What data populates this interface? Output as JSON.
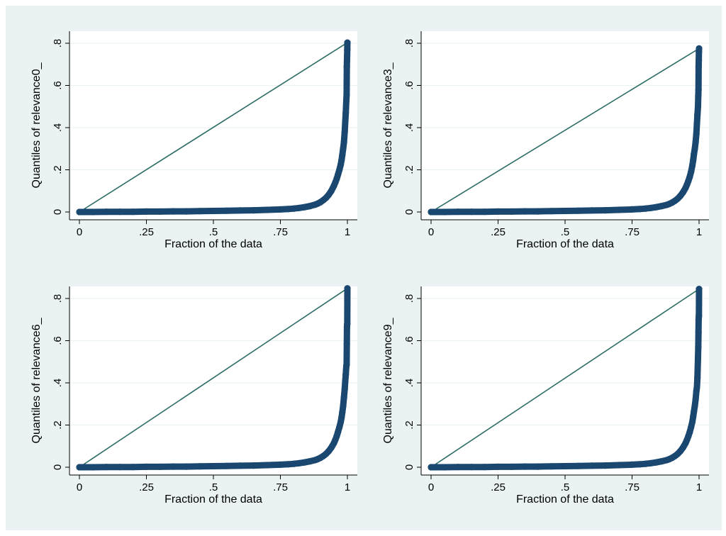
{
  "colors": {
    "background": "#eaf2f3",
    "plot_region": "#ffffff",
    "points": "#1a476f",
    "reference_line": "#2d6d66",
    "grid": "#eaf2f3"
  },
  "chart_data": [
    {
      "type": "scatter",
      "subtype": "quantile-plot",
      "ylabel": "Quantiles of relevance0_",
      "xlabel": "Fraction of the data",
      "xlim": [
        0,
        1
      ],
      "ylim": [
        0,
        0.8
      ],
      "xticks": [
        "0",
        ".25",
        ".5",
        ".75",
        "1"
      ],
      "yticks": [
        "0",
        ".2",
        ".4",
        ".6",
        ".8"
      ],
      "grid": true,
      "reference_line": {
        "from": [
          0,
          0
        ],
        "to": [
          1,
          0.803
        ]
      },
      "x": [
        0,
        0.05,
        0.1,
        0.15,
        0.2,
        0.25,
        0.3,
        0.35,
        0.4,
        0.45,
        0.5,
        0.55,
        0.6,
        0.65,
        0.7,
        0.75,
        0.78,
        0.8,
        0.82,
        0.84,
        0.86,
        0.88,
        0.89,
        0.9,
        0.91,
        0.92,
        0.93,
        0.94,
        0.95,
        0.955,
        0.96,
        0.965,
        0.97,
        0.975,
        0.978,
        0.981,
        0.984,
        0.987,
        0.99,
        0.992,
        0.994,
        0.996,
        0.997,
        0.998,
        0.9985,
        0.999,
        0.9995,
        1.0
      ],
      "y": [
        0.0,
        0.0,
        0.001,
        0.001,
        0.001,
        0.002,
        0.002,
        0.003,
        0.003,
        0.004,
        0.005,
        0.006,
        0.007,
        0.008,
        0.01,
        0.012,
        0.014,
        0.016,
        0.019,
        0.023,
        0.028,
        0.035,
        0.04,
        0.047,
        0.056,
        0.067,
        0.081,
        0.1,
        0.125,
        0.14,
        0.157,
        0.178,
        0.2,
        0.225,
        0.245,
        0.27,
        0.3,
        0.33,
        0.38,
        0.43,
        0.47,
        0.53,
        0.555,
        0.69,
        0.715,
        0.74,
        0.77,
        0.803
      ]
    },
    {
      "type": "scatter",
      "subtype": "quantile-plot",
      "ylabel": "Quantiles of relevance3_",
      "xlabel": "Fraction of the data",
      "xlim": [
        0,
        1
      ],
      "ylim": [
        0,
        0.8
      ],
      "xticks": [
        "0",
        ".25",
        ".5",
        ".75",
        "1"
      ],
      "yticks": [
        "0",
        ".2",
        ".4",
        ".6",
        ".8"
      ],
      "grid": true,
      "reference_line": {
        "from": [
          0,
          0
        ],
        "to": [
          1,
          0.775
        ]
      },
      "x": [
        0,
        0.05,
        0.1,
        0.15,
        0.2,
        0.25,
        0.3,
        0.35,
        0.4,
        0.45,
        0.5,
        0.55,
        0.6,
        0.65,
        0.7,
        0.75,
        0.78,
        0.8,
        0.82,
        0.84,
        0.86,
        0.88,
        0.89,
        0.9,
        0.91,
        0.92,
        0.93,
        0.94,
        0.95,
        0.955,
        0.96,
        0.965,
        0.97,
        0.975,
        0.978,
        0.981,
        0.984,
        0.987,
        0.99,
        0.992,
        0.994,
        0.996,
        0.997,
        0.998,
        0.9985,
        0.999,
        0.9995,
        1.0
      ],
      "y": [
        0.0,
        0.0,
        0.001,
        0.001,
        0.001,
        0.002,
        0.002,
        0.003,
        0.003,
        0.004,
        0.005,
        0.006,
        0.007,
        0.008,
        0.01,
        0.012,
        0.014,
        0.016,
        0.019,
        0.023,
        0.028,
        0.034,
        0.039,
        0.045,
        0.053,
        0.063,
        0.076,
        0.093,
        0.115,
        0.13,
        0.147,
        0.166,
        0.19,
        0.22,
        0.245,
        0.275,
        0.3,
        0.33,
        0.37,
        0.42,
        0.46,
        0.5,
        0.55,
        0.58,
        0.69,
        0.72,
        0.76,
        0.775
      ]
    },
    {
      "type": "scatter",
      "subtype": "quantile-plot",
      "ylabel": "Quantiles of relevance6_",
      "xlabel": "Fraction of the data",
      "xlim": [
        0,
        1
      ],
      "ylim": [
        0,
        0.8
      ],
      "xticks": [
        "0",
        ".25",
        ".5",
        ".75",
        "1"
      ],
      "yticks": [
        "0",
        ".2",
        ".4",
        ".6",
        ".8"
      ],
      "grid": true,
      "reference_line": {
        "from": [
          0,
          0
        ],
        "to": [
          1,
          0.848
        ]
      },
      "x": [
        0,
        0.05,
        0.1,
        0.15,
        0.2,
        0.25,
        0.3,
        0.35,
        0.4,
        0.45,
        0.5,
        0.55,
        0.6,
        0.65,
        0.7,
        0.75,
        0.78,
        0.8,
        0.82,
        0.84,
        0.86,
        0.88,
        0.89,
        0.9,
        0.91,
        0.92,
        0.93,
        0.94,
        0.95,
        0.955,
        0.96,
        0.965,
        0.97,
        0.975,
        0.978,
        0.981,
        0.984,
        0.987,
        0.99,
        0.992,
        0.994,
        0.996,
        0.997,
        0.998,
        0.9985,
        0.999,
        0.9995,
        1.0
      ],
      "y": [
        0.0,
        0.0,
        0.001,
        0.001,
        0.001,
        0.002,
        0.002,
        0.003,
        0.003,
        0.004,
        0.005,
        0.006,
        0.007,
        0.008,
        0.01,
        0.012,
        0.014,
        0.016,
        0.019,
        0.023,
        0.028,
        0.034,
        0.039,
        0.045,
        0.053,
        0.063,
        0.076,
        0.093,
        0.115,
        0.13,
        0.147,
        0.168,
        0.19,
        0.215,
        0.235,
        0.26,
        0.29,
        0.33,
        0.37,
        0.41,
        0.44,
        0.48,
        0.485,
        0.585,
        0.665,
        0.675,
        0.68,
        0.848
      ]
    },
    {
      "type": "scatter",
      "subtype": "quantile-plot",
      "ylabel": "Quantiles of relevance9_",
      "xlabel": "Fraction of the data",
      "xlim": [
        0,
        1
      ],
      "ylim": [
        0,
        0.8
      ],
      "xticks": [
        "0",
        ".25",
        ".5",
        ".75",
        "1"
      ],
      "yticks": [
        "0",
        ".2",
        ".4",
        ".6",
        ".8"
      ],
      "grid": true,
      "reference_line": {
        "from": [
          0,
          0
        ],
        "to": [
          1,
          0.845
        ]
      },
      "x": [
        0,
        0.05,
        0.1,
        0.15,
        0.2,
        0.25,
        0.3,
        0.35,
        0.4,
        0.45,
        0.5,
        0.55,
        0.6,
        0.65,
        0.7,
        0.75,
        0.78,
        0.8,
        0.82,
        0.84,
        0.86,
        0.88,
        0.89,
        0.9,
        0.91,
        0.92,
        0.93,
        0.94,
        0.95,
        0.955,
        0.96,
        0.965,
        0.97,
        0.975,
        0.978,
        0.981,
        0.984,
        0.987,
        0.99,
        0.992,
        0.994,
        0.996,
        0.997,
        0.998,
        0.9985,
        0.999,
        0.9995,
        1.0
      ],
      "y": [
        0.0,
        0.0,
        0.001,
        0.001,
        0.001,
        0.002,
        0.002,
        0.003,
        0.003,
        0.004,
        0.005,
        0.006,
        0.007,
        0.008,
        0.01,
        0.012,
        0.014,
        0.016,
        0.019,
        0.023,
        0.028,
        0.034,
        0.039,
        0.045,
        0.053,
        0.063,
        0.076,
        0.093,
        0.115,
        0.13,
        0.147,
        0.166,
        0.19,
        0.215,
        0.24,
        0.265,
        0.29,
        0.32,
        0.36,
        0.38,
        0.425,
        0.52,
        0.57,
        0.64,
        0.7,
        0.71,
        0.72,
        0.845
      ]
    }
  ]
}
